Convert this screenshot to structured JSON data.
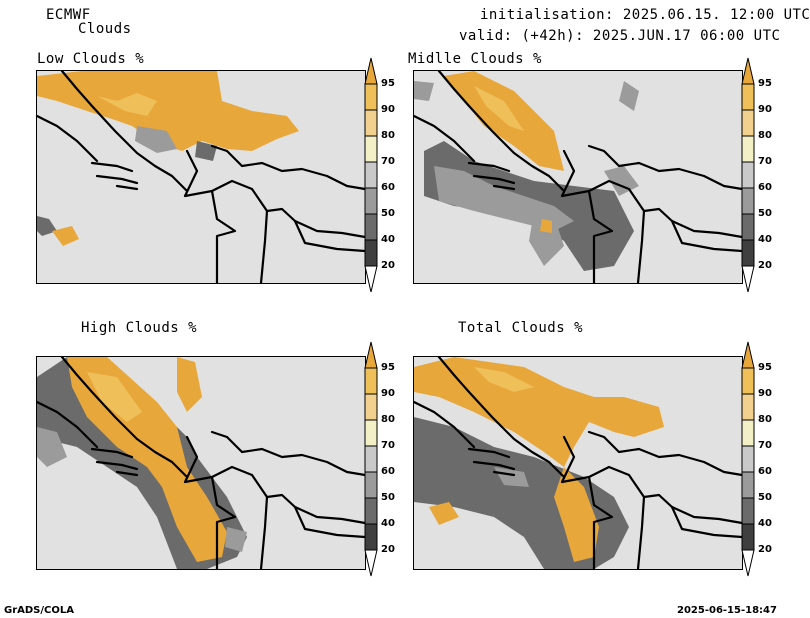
{
  "header": {
    "model": "ECMWF",
    "product": "Clouds",
    "init": "initialisation: 2025.06.15. 12:00 UTC",
    "valid": "valid: (+42h): 2025.JUN.17 06:00 UTC"
  },
  "panels": [
    {
      "title": "Low Clouds %"
    },
    {
      "title": "Midlle Clouds %"
    },
    {
      "title": "High Clouds %"
    },
    {
      "title": "Total Clouds %"
    }
  ],
  "colorbar": {
    "labels": [
      "95",
      "90",
      "80",
      "70",
      "60",
      "50",
      "40",
      "20"
    ],
    "colors": [
      "#e8a73a",
      "#efbf5a",
      "#f2d08e",
      "#f3f0c8",
      "#c9c9c9",
      "#9b9b9b",
      "#6b6b6b",
      "#3f3f3f",
      "#ffffff"
    ]
  },
  "footer": {
    "left": "GrADS/COLA",
    "right": "2025-06-15-18:47"
  }
}
